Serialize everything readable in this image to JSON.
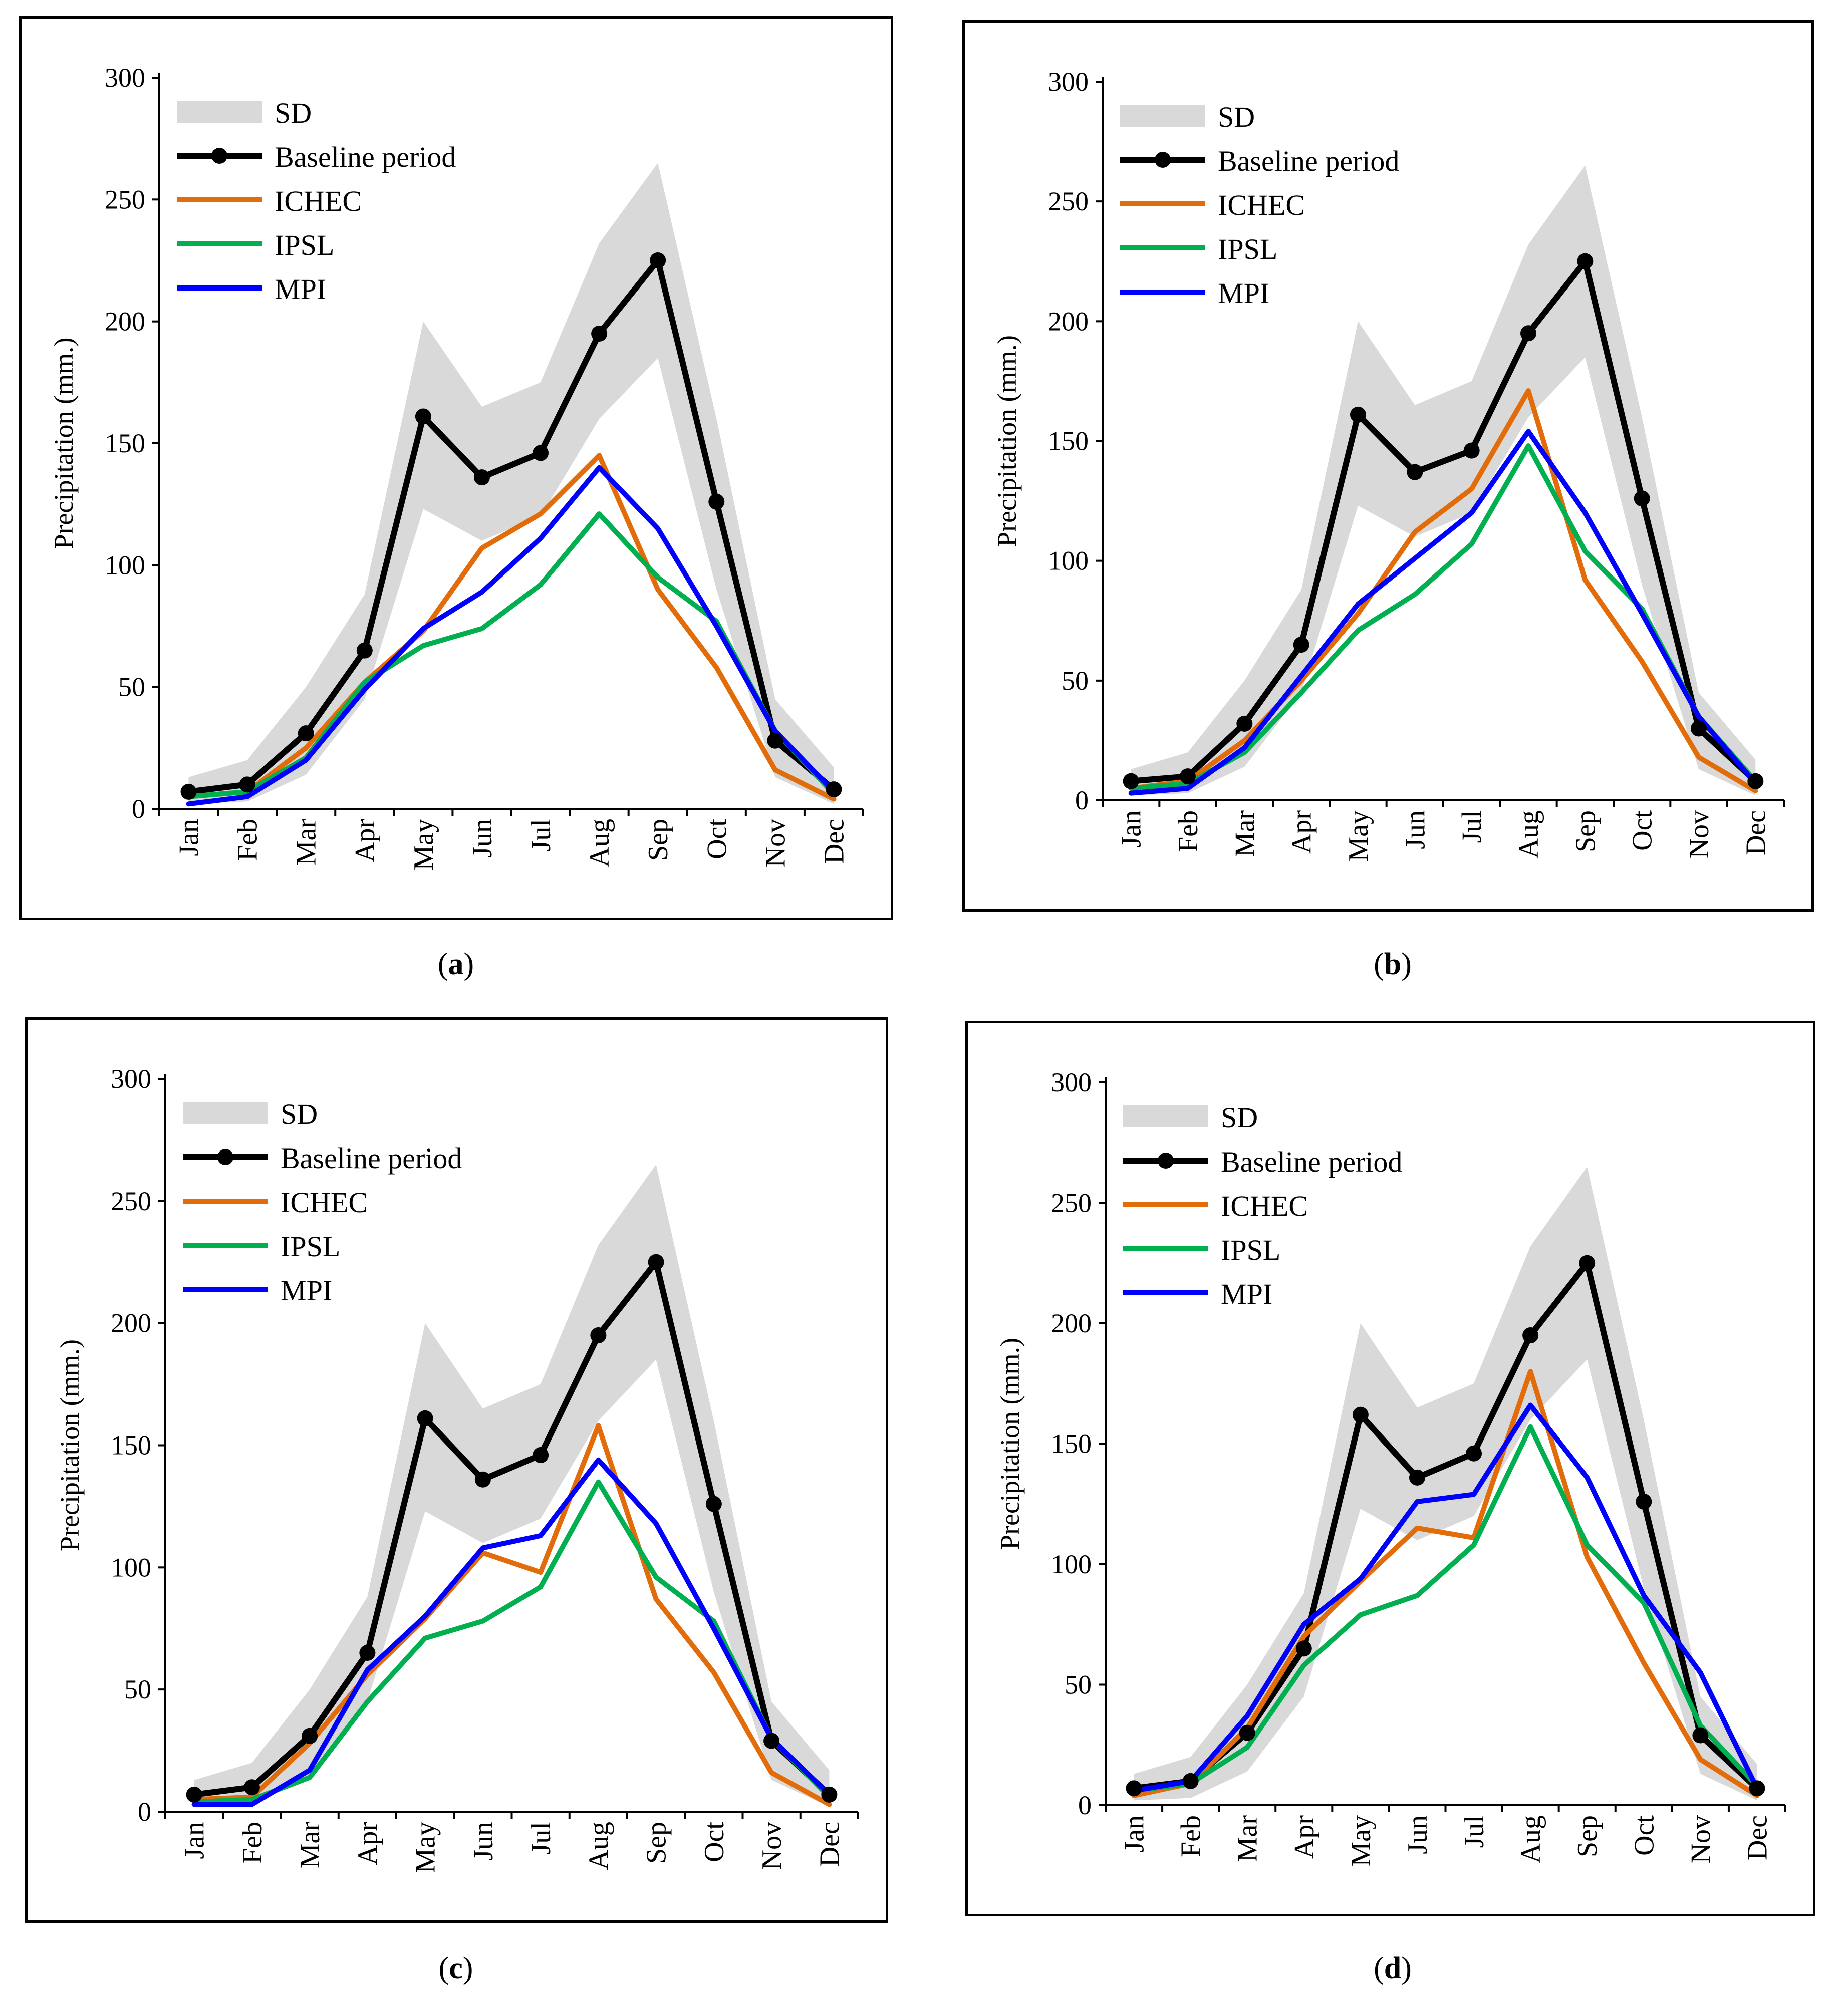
{
  "figure": {
    "captions": [
      "a",
      "b",
      "c",
      "d"
    ]
  },
  "colors": {
    "sd_band": "#d9d9d9",
    "baseline": "#000000",
    "ichec": "#e36c0a",
    "ipsl": "#00b050",
    "mpi": "#0000ff"
  },
  "chart_data": [
    {
      "panel": "a",
      "type": "line",
      "ylabel": "Precipitation (mm.)",
      "ylim": [
        0,
        300
      ],
      "yticks": [
        0,
        50,
        100,
        150,
        200,
        250,
        300
      ],
      "categories": [
        "Jan",
        "Feb",
        "Mar",
        "Apr",
        "May",
        "Jun",
        "Jul",
        "Aug",
        "Sep",
        "Oct",
        "Nov",
        "Dec"
      ],
      "legend": [
        "SD",
        "Baseline period",
        "ICHEC",
        "IPSL",
        "MPI"
      ],
      "sd_band": {
        "upper": [
          13,
          20,
          50,
          88,
          200,
          165,
          175,
          232,
          265,
          160,
          45,
          17
        ],
        "lower": [
          2,
          3,
          14,
          45,
          123,
          110,
          120,
          160,
          185,
          90,
          13,
          2
        ]
      },
      "series": [
        {
          "name": "Baseline period",
          "values": [
            7,
            10,
            31,
            65,
            161,
            136,
            146,
            195,
            225,
            126,
            28,
            8
          ]
        },
        {
          "name": "ICHEC",
          "values": [
            5,
            7,
            25,
            52,
            73,
            107,
            121,
            145,
            90,
            58,
            16,
            4
          ]
        },
        {
          "name": "IPSL",
          "values": [
            5,
            7,
            21,
            52,
            67,
            74,
            92,
            121,
            95,
            77,
            32,
            6
          ]
        },
        {
          "name": "MPI",
          "values": [
            2,
            5,
            20,
            49,
            74,
            89,
            111,
            140,
            115,
            75,
            32,
            7
          ]
        }
      ]
    },
    {
      "panel": "b",
      "type": "line",
      "ylabel": "Precipitation (mm.)",
      "ylim": [
        0,
        300
      ],
      "yticks": [
        0,
        50,
        100,
        150,
        200,
        250,
        300
      ],
      "categories": [
        "Jan",
        "Feb",
        "Mar",
        "Apr",
        "May",
        "Jun",
        "Jul",
        "Aug",
        "Sep",
        "Oct",
        "Nov",
        "Dec"
      ],
      "legend": [
        "SD",
        "Baseline period",
        "ICHEC",
        "IPSL",
        "MPI"
      ],
      "sd_band": {
        "upper": [
          13,
          20,
          50,
          88,
          200,
          165,
          175,
          232,
          265,
          160,
          45,
          17
        ],
        "lower": [
          2,
          3,
          14,
          45,
          123,
          110,
          120,
          160,
          185,
          90,
          13,
          2
        ]
      },
      "series": [
        {
          "name": "Baseline period",
          "values": [
            8,
            10,
            32,
            65,
            161,
            137,
            146,
            195,
            225,
            126,
            30,
            8
          ]
        },
        {
          "name": "ICHEC",
          "values": [
            5,
            8,
            25,
            50,
            78,
            112,
            130,
            171,
            92,
            58,
            18,
            4
          ]
        },
        {
          "name": "IPSL",
          "values": [
            5,
            7,
            20,
            45,
            71,
            86,
            107,
            148,
            104,
            80,
            35,
            8
          ]
        },
        {
          "name": "MPI",
          "values": [
            3,
            5,
            22,
            52,
            82,
            101,
            120,
            154,
            120,
            78,
            35,
            7
          ]
        }
      ]
    },
    {
      "panel": "c",
      "type": "line",
      "ylabel": "Precipitation (mm.)",
      "ylim": [
        0,
        300
      ],
      "yticks": [
        0,
        50,
        100,
        150,
        200,
        250,
        300
      ],
      "categories": [
        "Jan",
        "Feb",
        "Mar",
        "Apr",
        "May",
        "Jun",
        "Jul",
        "Aug",
        "Sep",
        "Oct",
        "Nov",
        "Dec"
      ],
      "legend": [
        "SD",
        "Baseline period",
        "ICHEC",
        "IPSL",
        "MPI"
      ],
      "sd_band": {
        "upper": [
          13,
          20,
          50,
          88,
          200,
          165,
          175,
          232,
          265,
          160,
          45,
          17
        ],
        "lower": [
          2,
          3,
          14,
          45,
          123,
          110,
          120,
          160,
          185,
          90,
          13,
          2
        ]
      },
      "series": [
        {
          "name": "Baseline period",
          "values": [
            7,
            10,
            31,
            65,
            161,
            136,
            146,
            195,
            225,
            126,
            29,
            7
          ]
        },
        {
          "name": "ICHEC",
          "values": [
            5,
            6,
            28,
            56,
            79,
            106,
            98,
            158,
            87,
            57,
            16,
            3
          ]
        },
        {
          "name": "IPSL",
          "values": [
            4,
            5,
            14,
            45,
            71,
            78,
            92,
            135,
            96,
            78,
            30,
            6
          ]
        },
        {
          "name": "MPI",
          "values": [
            3,
            3,
            17,
            58,
            80,
            108,
            113,
            144,
            118,
            75,
            30,
            7
          ]
        }
      ]
    },
    {
      "panel": "d",
      "type": "line",
      "ylabel": "Precipitation (mm.)",
      "ylim": [
        0,
        300
      ],
      "yticks": [
        0,
        50,
        100,
        150,
        200,
        250,
        300
      ],
      "categories": [
        "Jan",
        "Feb",
        "Mar",
        "Apr",
        "May",
        "Jun",
        "Jul",
        "Aug",
        "Sep",
        "Oct",
        "Nov",
        "Dec"
      ],
      "legend": [
        "SD",
        "Baseline period",
        "ICHEC",
        "IPSL",
        "MPI"
      ],
      "sd_band": {
        "upper": [
          13,
          20,
          50,
          88,
          200,
          165,
          175,
          232,
          265,
          160,
          45,
          17
        ],
        "lower": [
          2,
          3,
          14,
          45,
          123,
          110,
          120,
          160,
          185,
          90,
          13,
          2
        ]
      },
      "series": [
        {
          "name": "Baseline period",
          "values": [
            7,
            10,
            30,
            65,
            162,
            136,
            146,
            195,
            225,
            126,
            29,
            7
          ]
        },
        {
          "name": "ICHEC",
          "values": [
            4,
            9,
            32,
            70,
            93,
            115,
            111,
            180,
            103,
            59,
            19,
            4
          ]
        },
        {
          "name": "IPSL",
          "values": [
            6,
            9,
            24,
            58,
            79,
            87,
            108,
            157,
            108,
            84,
            33,
            8
          ]
        },
        {
          "name": "MPI",
          "values": [
            6,
            10,
            37,
            75,
            94,
            126,
            129,
            166,
            136,
            87,
            55,
            7
          ]
        }
      ]
    }
  ]
}
